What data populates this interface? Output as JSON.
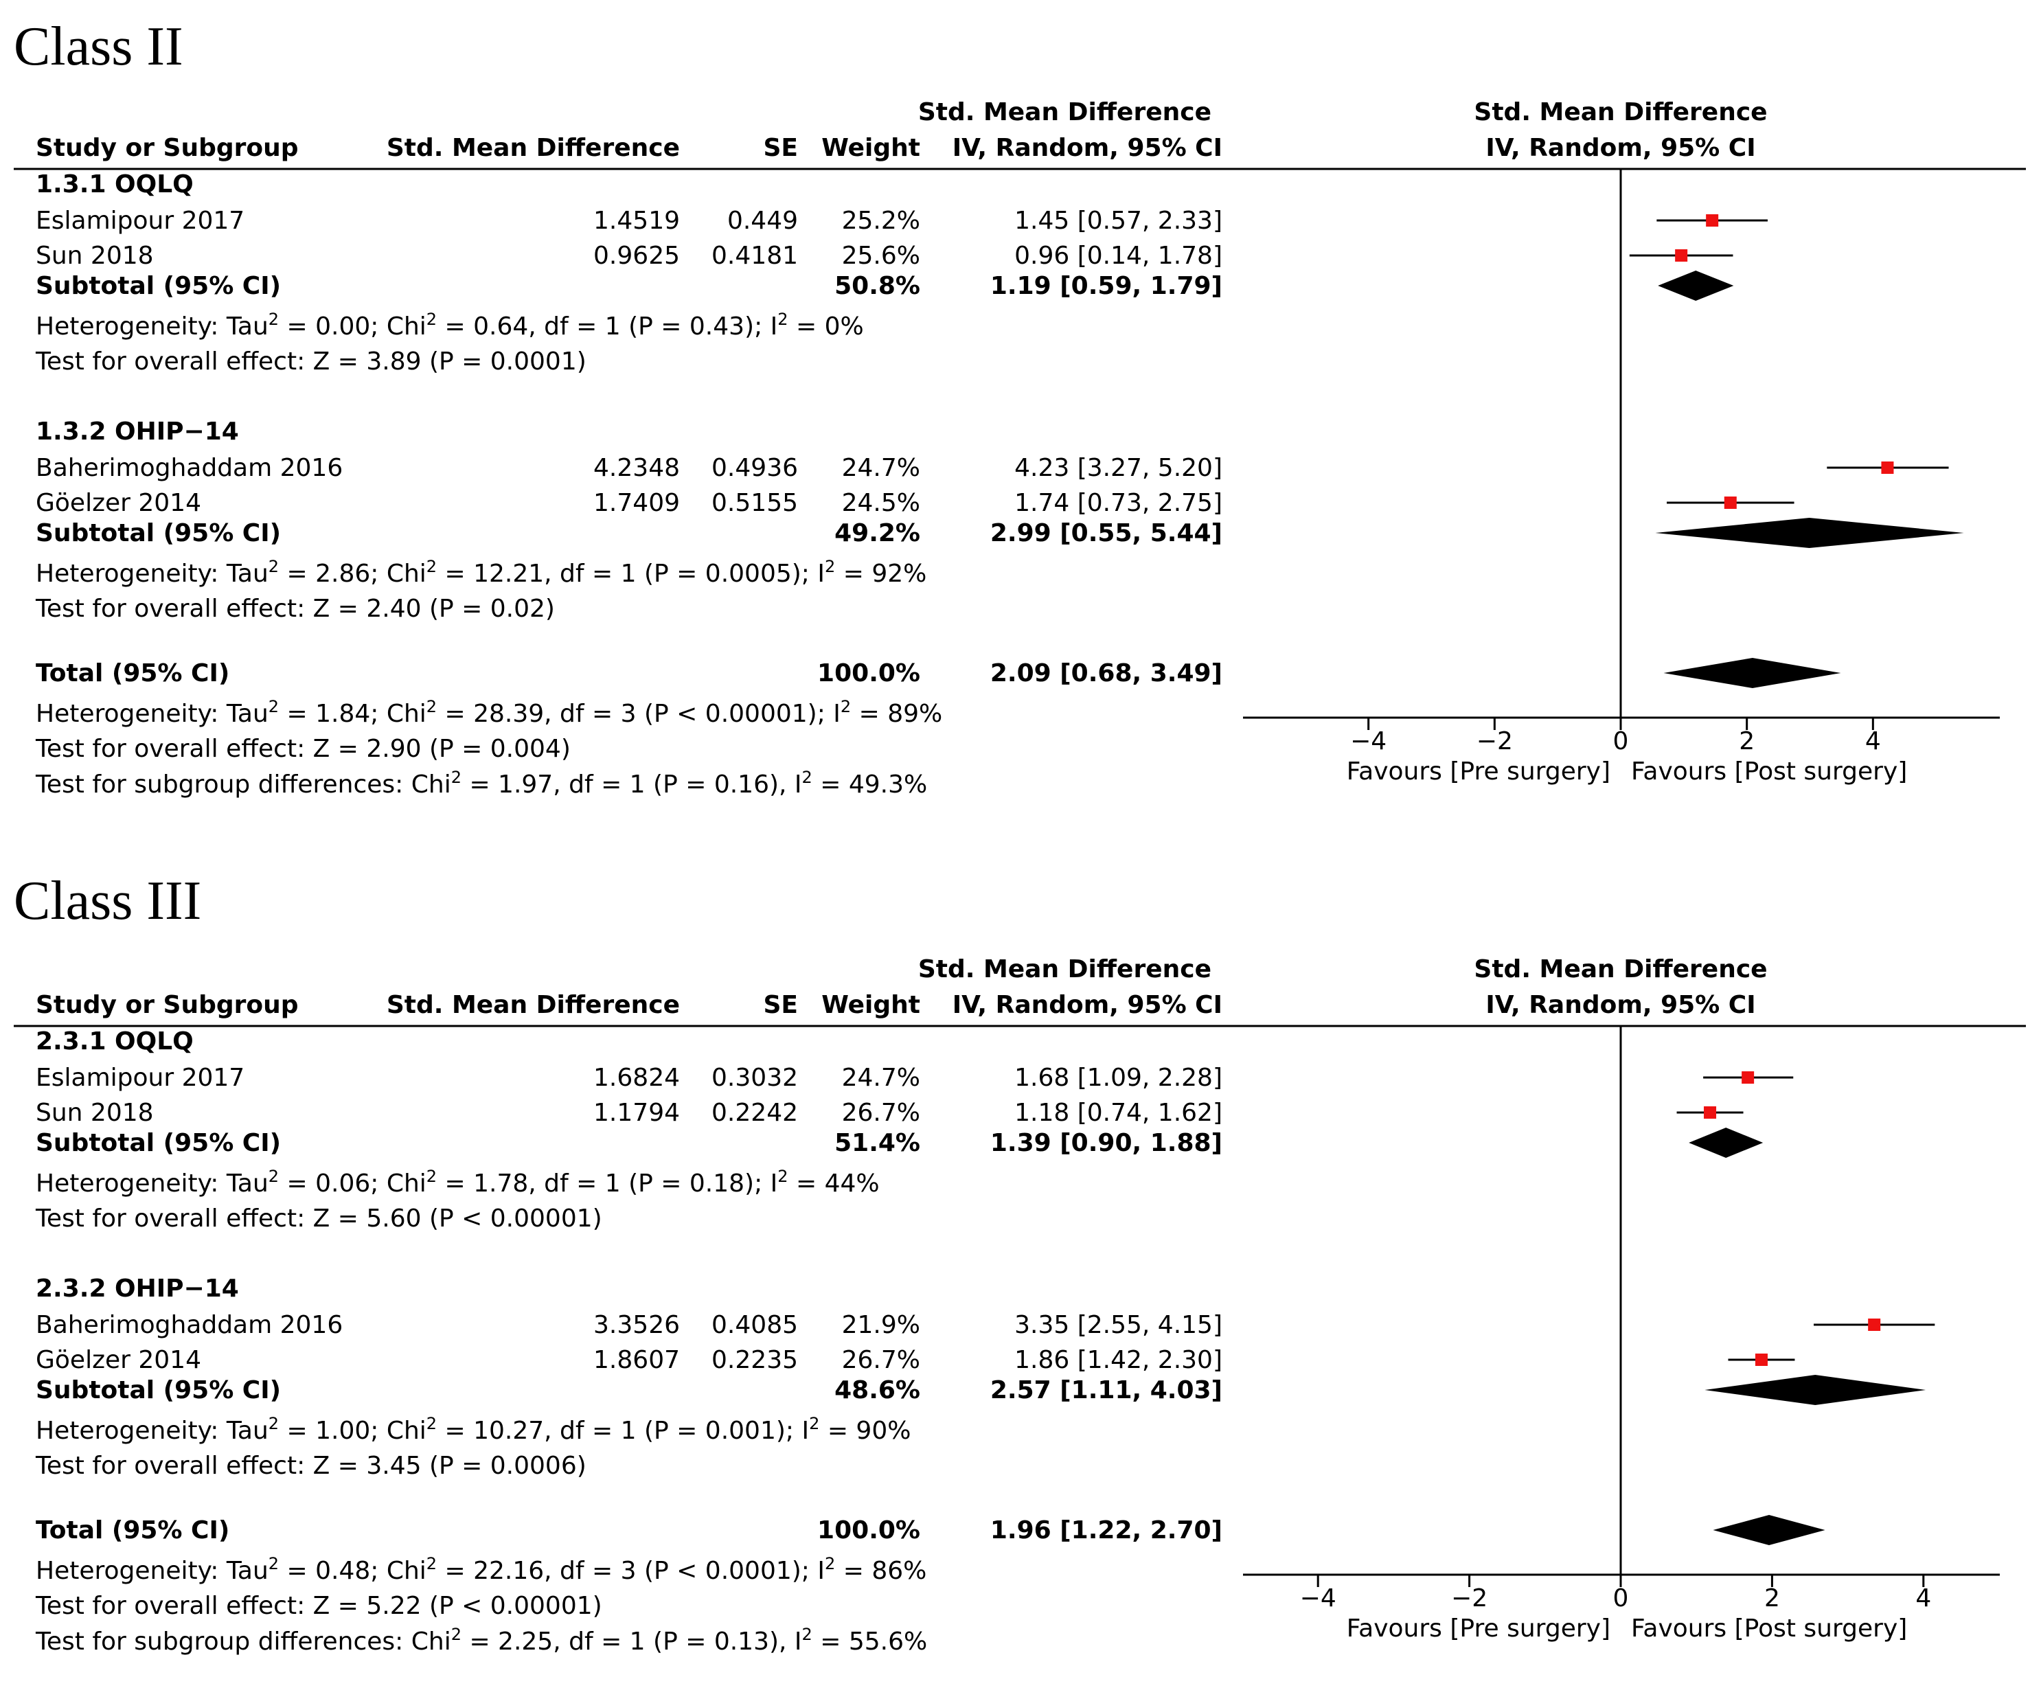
{
  "panels": [
    {
      "title": "Class II",
      "chart_data": {
        "type": "forest",
        "headers": {
          "study": "Study or Subgroup",
          "smd": "Std. Mean Difference",
          "se": "SE",
          "weight": "Weight",
          "ci_line1": "Std. Mean Difference",
          "ci_line2": "IV, Random, 95% CI",
          "plot_line1": "Std. Mean Difference",
          "plot_line2": "IV, Random, 95% CI"
        },
        "xlim": [
          -6,
          6
        ],
        "ticks": [
          {
            "v": -4,
            "label": "−4"
          },
          {
            "v": -2,
            "label": "−2"
          },
          {
            "v": 0,
            "label": "0"
          },
          {
            "v": 2,
            "label": "2"
          },
          {
            "v": 4,
            "label": "4"
          }
        ],
        "favours_left": "Favours [Pre surgery]",
        "favours_right": "Favours [Post surgery]",
        "subgroups": [
          {
            "name": "1.3.1 OQLQ",
            "studies": [
              {
                "name": "Eslamipour 2017",
                "smd": "1.4519",
                "se": "0.449",
                "weight": "25.2%",
                "ci_text": "1.45 [0.57, 2.33]",
                "est": 1.45,
                "lo": 0.57,
                "hi": 2.33
              },
              {
                "name": "Sun 2018",
                "smd": "0.9625",
                "se": "0.4181",
                "weight": "25.6%",
                "ci_text": "0.96 [0.14, 1.78]",
                "est": 0.96,
                "lo": 0.14,
                "hi": 1.78
              }
            ],
            "subtotal": {
              "label": "Subtotal (95% CI)",
              "weight": "50.8%",
              "ci_text": "1.19 [0.59, 1.79]",
              "est": 1.19,
              "lo": 0.59,
              "hi": 1.79
            },
            "heterogeneity": {
              "prefix": "Heterogeneity: Tau",
              "exp": "2",
              "middle": " = 0.00; Chi",
              "exp2": "2",
              "rest": " = 0.64, df = 1 (P = 0.43); I",
              "exp3": "2",
              "tail": " = 0%"
            },
            "overall": "Test for overall effect: Z = 3.89 (P = 0.0001)"
          },
          {
            "name": "1.3.2 OHIP−14",
            "studies": [
              {
                "name": "Baherimoghaddam 2016",
                "smd": "4.2348",
                "se": "0.4936",
                "weight": "24.7%",
                "ci_text": "4.23 [3.27, 5.20]",
                "est": 4.23,
                "lo": 3.27,
                "hi": 5.2
              },
              {
                "name": "Göelzer 2014",
                "smd": "1.7409",
                "se": "0.5155",
                "weight": "24.5%",
                "ci_text": "1.74 [0.73, 2.75]",
                "est": 1.74,
                "lo": 0.73,
                "hi": 2.75
              }
            ],
            "subtotal": {
              "label": "Subtotal (95% CI)",
              "weight": "49.2%",
              "ci_text": "2.99 [0.55, 5.44]",
              "est": 2.99,
              "lo": 0.55,
              "hi": 5.44
            },
            "heterogeneity": {
              "prefix": "Heterogeneity: Tau",
              "exp": "2",
              "middle": " = 2.86; Chi",
              "exp2": "2",
              "rest": " = 12.21, df = 1 (P = 0.0005); I",
              "exp3": "2",
              "tail": " = 92%"
            },
            "overall": "Test for overall effect: Z = 2.40 (P = 0.02)"
          }
        ],
        "total": {
          "label": "Total (95% CI)",
          "weight": "100.0%",
          "ci_text": "2.09 [0.68, 3.49]",
          "est": 2.09,
          "lo": 0.68,
          "hi": 3.49
        },
        "total_heterogeneity": {
          "prefix": "Heterogeneity: Tau",
          "exp": "2",
          "middle": " = 1.84; Chi",
          "exp2": "2",
          "rest": " = 28.39, df = 3 (P < 0.00001); I",
          "exp3": "2",
          "tail": " = 89%"
        },
        "total_overall": "Test for overall effect: Z = 2.90 (P = 0.004)",
        "subgroup_diff": {
          "prefix": "Test for subgroup differences: Chi",
          "exp": "2",
          "rest": " = 1.97, df = 1 (P = 0.16), I",
          "exp2": "2",
          "tail": " = 49.3%"
        }
      }
    },
    {
      "title": "Class III",
      "chart_data": {
        "type": "forest",
        "headers": {
          "study": "Study or Subgroup",
          "smd": "Std. Mean Difference",
          "se": "SE",
          "weight": "Weight",
          "ci_line1": "Std. Mean Difference",
          "ci_line2": "IV, Random, 95% CI",
          "plot_line1": "Std. Mean Difference",
          "plot_line2": "IV, Random, 95% CI"
        },
        "xlim": [
          -5,
          5
        ],
        "ticks": [
          {
            "v": -4,
            "label": "−4"
          },
          {
            "v": -2,
            "label": "−2"
          },
          {
            "v": 0,
            "label": "0"
          },
          {
            "v": 2,
            "label": "2"
          },
          {
            "v": 4,
            "label": "4"
          }
        ],
        "favours_left": "Favours [Pre surgery]",
        "favours_right": "Favours [Post surgery]",
        "subgroups": [
          {
            "name": "2.3.1 OQLQ",
            "studies": [
              {
                "name": "Eslamipour 2017",
                "smd": "1.6824",
                "se": "0.3032",
                "weight": "24.7%",
                "ci_text": "1.68 [1.09, 2.28]",
                "est": 1.68,
                "lo": 1.09,
                "hi": 2.28
              },
              {
                "name": "Sun 2018",
                "smd": "1.1794",
                "se": "0.2242",
                "weight": "26.7%",
                "ci_text": "1.18 [0.74, 1.62]",
                "est": 1.18,
                "lo": 0.74,
                "hi": 1.62
              }
            ],
            "subtotal": {
              "label": "Subtotal (95% CI)",
              "weight": "51.4%",
              "ci_text": "1.39 [0.90, 1.88]",
              "est": 1.39,
              "lo": 0.9,
              "hi": 1.88
            },
            "heterogeneity": {
              "prefix": "Heterogeneity: Tau",
              "exp": "2",
              "middle": " = 0.06; Chi",
              "exp2": "2",
              "rest": " = 1.78, df = 1 (P = 0.18); I",
              "exp3": "2",
              "tail": " = 44%"
            },
            "overall": "Test for overall effect: Z = 5.60 (P < 0.00001)"
          },
          {
            "name": "2.3.2 OHIP−14",
            "studies": [
              {
                "name": "Baherimoghaddam 2016",
                "smd": "3.3526",
                "se": "0.4085",
                "weight": "21.9%",
                "ci_text": "3.35 [2.55, 4.15]",
                "est": 3.35,
                "lo": 2.55,
                "hi": 4.15
              },
              {
                "name": "Göelzer 2014",
                "smd": "1.8607",
                "se": "0.2235",
                "weight": "26.7%",
                "ci_text": "1.86 [1.42, 2.30]",
                "est": 1.86,
                "lo": 1.42,
                "hi": 2.3
              }
            ],
            "subtotal": {
              "label": "Subtotal (95% CI)",
              "weight": "48.6%",
              "ci_text": "2.57 [1.11, 4.03]",
              "est": 2.57,
              "lo": 1.11,
              "hi": 4.03
            },
            "heterogeneity": {
              "prefix": "Heterogeneity: Tau",
              "exp": "2",
              "middle": " = 1.00; Chi",
              "exp2": "2",
              "rest": " = 10.27, df = 1 (P = 0.001); I",
              "exp3": "2",
              "tail": " = 90%"
            },
            "overall": "Test for overall effect: Z = 3.45 (P = 0.0006)"
          }
        ],
        "total": {
          "label": "Total (95% CI)",
          "weight": "100.0%",
          "ci_text": "1.96 [1.22, 2.70]",
          "est": 1.96,
          "lo": 1.22,
          "hi": 2.7
        },
        "total_heterogeneity": {
          "prefix": "Heterogeneity: Tau",
          "exp": "2",
          "middle": " = 0.48; Chi",
          "exp2": "2",
          "rest": " = 22.16, df = 3 (P < 0.0001); I",
          "exp3": "2",
          "tail": " = 86%"
        },
        "total_overall": "Test for overall effect: Z = 5.22 (P < 0.00001)",
        "subgroup_diff": {
          "prefix": "Test for subgroup differences: Chi",
          "exp": "2",
          "rest": " = 2.25, df = 1 (P = 0.13), I",
          "exp2": "2",
          "tail": " = 55.6%"
        }
      }
    }
  ],
  "colors": {
    "point": "#ee1111",
    "diamond": "#000000",
    "line": "#000000"
  }
}
